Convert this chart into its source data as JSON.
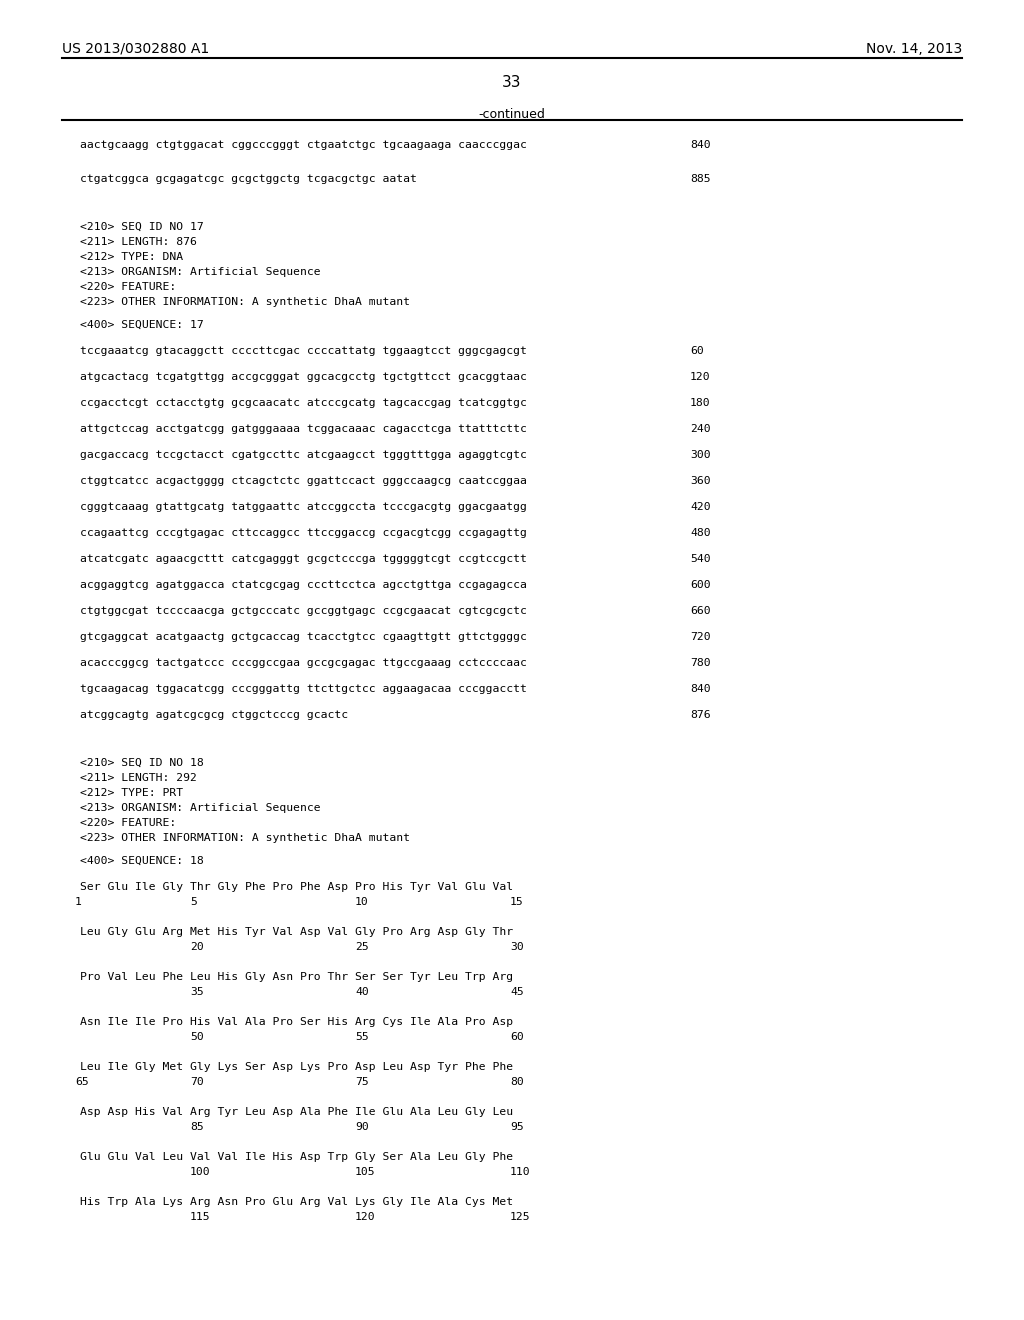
{
  "bg_color": "#ffffff",
  "header_left": "US 2013/0302880 A1",
  "header_right": "Nov. 14, 2013",
  "page_number": "33",
  "continued_label": "-continued",
  "line1_seq": "aactgcaagg ctgtggacat cggcccgggt ctgaatctgc tgcaagaaga caacccggac",
  "line1_num": "840",
  "line2_seq": "ctgatcggca gcgagatcgc gcgctggctg tcgacgctgc aatat",
  "line2_num": "885",
  "meta17": [
    "<210> SEQ ID NO 17",
    "<211> LENGTH: 876",
    "<212> TYPE: DNA",
    "<213> ORGANISM: Artificial Sequence",
    "<220> FEATURE:",
    "<223> OTHER INFORMATION: A synthetic DhaA mutant"
  ],
  "seq17_label": "<400> SEQUENCE: 17",
  "seq17_lines": [
    [
      "tccgaaatcg gtacaggctt ccccttcgac ccccattatg tggaagtcct gggcgagcgt",
      "60"
    ],
    [
      "atgcactacg tcgatgttgg accgcgggat ggcacgcctg tgctgttcct gcacggtaac",
      "120"
    ],
    [
      "ccgacctcgt cctacctgtg gcgcaacatc atcccgcatg tagcaccgag tcatcggtgc",
      "180"
    ],
    [
      "attgctccag acctgatcgg gatgggaaaa tcggacaaac cagacctcga ttatttcttc",
      "240"
    ],
    [
      "gacgaccacg tccgctacct cgatgccttc atcgaagcct tgggtttgga agaggtcgtc",
      "300"
    ],
    [
      "ctggtcatcc acgactgggg ctcagctctc ggattccact gggccaagcg caatccggaa",
      "360"
    ],
    [
      "cgggtcaaag gtattgcatg tatggaattc atccggccta tcccgacgtg ggacgaatgg",
      "420"
    ],
    [
      "ccagaattcg cccgtgagac cttccaggcc ttccggaccg ccgacgtcgg ccgagagttg",
      "480"
    ],
    [
      "atcatcgatc agaacgcttt catcgagggt gcgctcccga tgggggtcgt ccgtccgctt",
      "540"
    ],
    [
      "acggaggtcg agatggacca ctatcgcgag cccttcctca agcctgttga ccgagagcca",
      "600"
    ],
    [
      "ctgtggcgat tccccaacga gctgcccatc gccggtgagc ccgcgaacat cgtcgcgctc",
      "660"
    ],
    [
      "gtcgaggcat acatgaactg gctgcaccag tcacctgtcc cgaagttgtt gttctggggc",
      "720"
    ],
    [
      "acacccggcg tactgatccc cccggccgaa gccgcgagac ttgccgaaag cctccccaac",
      "780"
    ],
    [
      "tgcaagacag tggacatcgg cccgggattg ttcttgctcc aggaagacaa cccggacctt",
      "840"
    ],
    [
      "atcggcagtg agatcgcgcg ctggctcccg gcactc",
      "876"
    ]
  ],
  "meta18": [
    "<210> SEQ ID NO 18",
    "<211> LENGTH: 292",
    "<212> TYPE: PRT",
    "<213> ORGANISM: Artificial Sequence",
    "<220> FEATURE:",
    "<223> OTHER INFORMATION: A synthetic DhaA mutant"
  ],
  "seq18_label": "<400> SEQUENCE: 18",
  "prt_data": [
    {
      "seq": "Ser Glu Ile Gly Thr Gly Phe Pro Phe Asp Pro His Tyr Val Glu Val",
      "nums": [
        [
          "1",
          75
        ],
        [
          "5",
          190
        ],
        [
          "10",
          355
        ],
        [
          "15",
          510
        ]
      ]
    },
    {
      "seq": "Leu Gly Glu Arg Met His Tyr Val Asp Val Gly Pro Arg Asp Gly Thr",
      "nums": [
        [
          "20",
          190
        ],
        [
          "25",
          355
        ],
        [
          "30",
          510
        ]
      ]
    },
    {
      "seq": "Pro Val Leu Phe Leu His Gly Asn Pro Thr Ser Ser Tyr Leu Trp Arg",
      "nums": [
        [
          "35",
          190
        ],
        [
          "40",
          355
        ],
        [
          "45",
          510
        ]
      ]
    },
    {
      "seq": "Asn Ile Ile Pro His Val Ala Pro Ser His Arg Cys Ile Ala Pro Asp",
      "nums": [
        [
          "50",
          190
        ],
        [
          "55",
          355
        ],
        [
          "60",
          510
        ]
      ]
    },
    {
      "seq": "Leu Ile Gly Met Gly Lys Ser Asp Lys Pro Asp Leu Asp Tyr Phe Phe",
      "nums": [
        [
          "65",
          75
        ],
        [
          "70",
          190
        ],
        [
          "75",
          355
        ],
        [
          "80",
          510
        ]
      ]
    },
    {
      "seq": "Asp Asp His Val Arg Tyr Leu Asp Ala Phe Ile Glu Ala Leu Gly Leu",
      "nums": [
        [
          "85",
          190
        ],
        [
          "90",
          355
        ],
        [
          "95",
          510
        ]
      ]
    },
    {
      "seq": "Glu Glu Val Leu Val Val Ile His Asp Trp Gly Ser Ala Leu Gly Phe",
      "nums": [
        [
          "100",
          190
        ],
        [
          "105",
          355
        ],
        [
          "110",
          510
        ]
      ]
    },
    {
      "seq": "His Trp Ala Lys Arg Asn Pro Glu Arg Val Lys Gly Ile Ala Cys Met",
      "nums": [
        [
          "115",
          190
        ],
        [
          "120",
          355
        ],
        [
          "125",
          510
        ]
      ]
    }
  ]
}
